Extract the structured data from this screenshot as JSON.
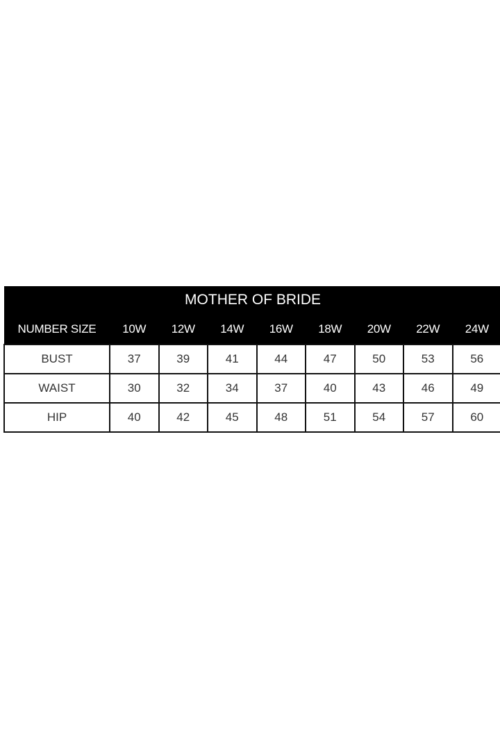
{
  "title": "MOTHER OF BRIDE",
  "header_label": "NUMBER SIZE",
  "sizes": [
    "10W",
    "12W",
    "14W",
    "16W",
    "18W",
    "20W",
    "22W",
    "24W"
  ],
  "rows": [
    {
      "label": "BUST",
      "values": [
        "37",
        "39",
        "41",
        "44",
        "47",
        "50",
        "53",
        "56"
      ]
    },
    {
      "label": "WAIST",
      "values": [
        "30",
        "32",
        "34",
        "37",
        "40",
        "43",
        "46",
        "49"
      ]
    },
    {
      "label": "HIP",
      "values": [
        "40",
        "42",
        "45",
        "48",
        "51",
        "54",
        "57",
        "60"
      ]
    }
  ]
}
